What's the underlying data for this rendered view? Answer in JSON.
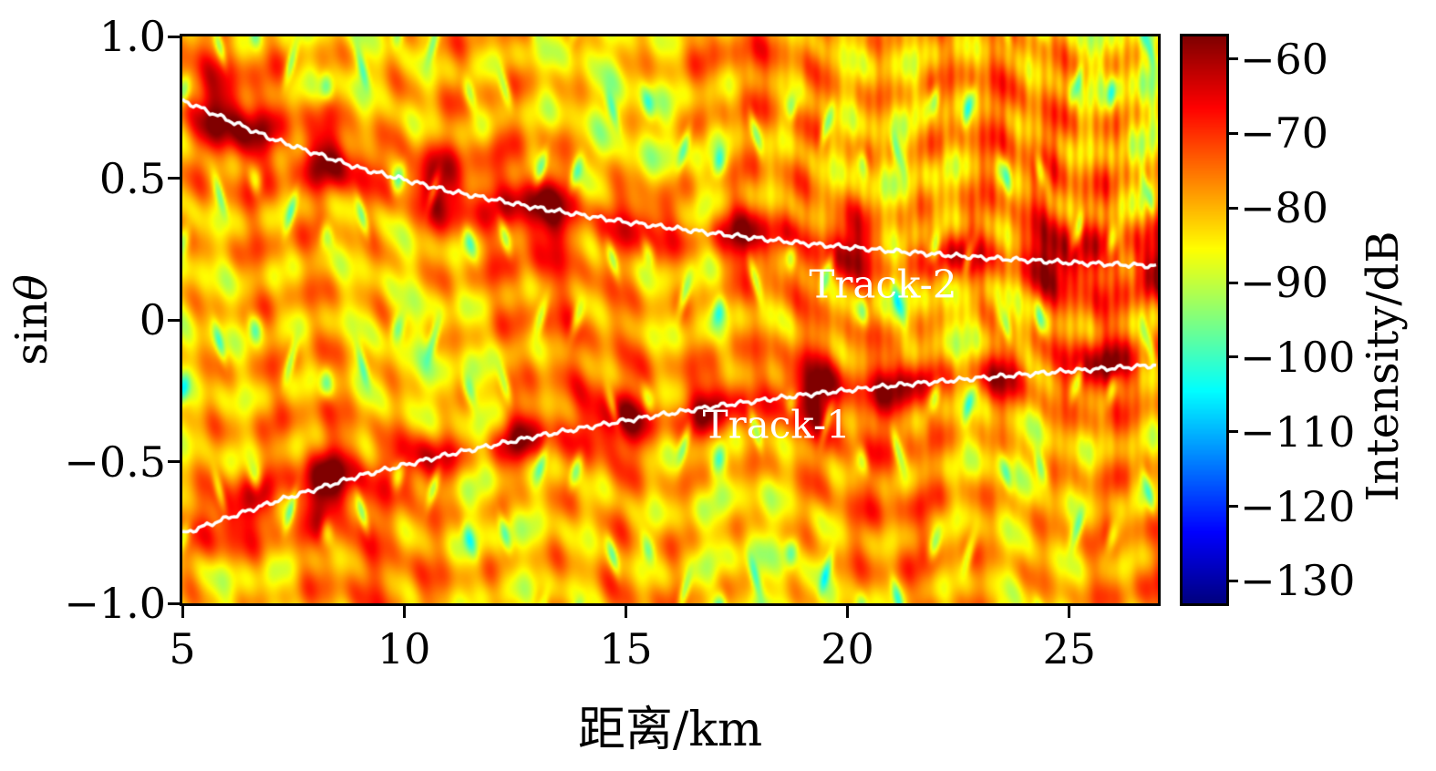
{
  "figure": {
    "background": "#ffffff"
  },
  "chart_data": {
    "type": "heatmap",
    "title": "",
    "xlabel": "距离/km",
    "ylabel_roman": "sin",
    "ylabel_symbol": "θ",
    "colorbar_label": "Intensity/dB",
    "colormap": "jet",
    "xlim": [
      5,
      27
    ],
    "ylim": [
      -1,
      1
    ],
    "colorbar_range": [
      -133,
      -57
    ],
    "x_ticks": [
      {
        "v": 5,
        "label": "5"
      },
      {
        "v": 10,
        "label": "10"
      },
      {
        "v": 15,
        "label": "15"
      },
      {
        "v": 20,
        "label": "20"
      },
      {
        "v": 25,
        "label": "25"
      }
    ],
    "y_ticks": [
      {
        "v": 1.0,
        "label": "1.0"
      },
      {
        "v": 0.5,
        "label": "0.5"
      },
      {
        "v": 0,
        "label": "0"
      },
      {
        "v": -0.5,
        "label": "−0.5"
      },
      {
        "v": -1.0,
        "label": "−1.0"
      }
    ],
    "colorbar_ticks": [
      {
        "v": -60,
        "label": "−60"
      },
      {
        "v": -70,
        "label": "−70"
      },
      {
        "v": -80,
        "label": "−80"
      },
      {
        "v": -90,
        "label": "−90"
      },
      {
        "v": -100,
        "label": "−100"
      },
      {
        "v": -110,
        "label": "−110"
      },
      {
        "v": -120,
        "label": "−120"
      },
      {
        "v": -130,
        "label": "−130"
      }
    ],
    "background_field": {
      "base_db": -80,
      "striation_db": 4.2,
      "speckle_db": 2.6,
      "dropout_db": 16,
      "ridge_gain_db": 20,
      "ridge_sigma_sin": 0.085
    },
    "tracks": [
      {
        "name": "Track-1",
        "label": "Track-1",
        "label_x_km": 18.4,
        "label_y_sin": -0.37,
        "x_km": [
          5,
          7,
          9,
          11,
          13,
          15,
          17,
          19,
          21,
          23,
          25,
          27
        ],
        "y_sin": [
          -0.755,
          -0.645,
          -0.55,
          -0.475,
          -0.41,
          -0.355,
          -0.305,
          -0.265,
          -0.232,
          -0.205,
          -0.18,
          -0.16
        ]
      },
      {
        "name": "Track-2",
        "label": "Track-2",
        "label_x_km": 20.8,
        "label_y_sin": 0.125,
        "x_km": [
          5,
          7,
          9,
          11,
          13,
          15,
          17,
          19,
          21,
          23,
          25,
          27
        ],
        "y_sin": [
          0.775,
          0.64,
          0.535,
          0.455,
          0.395,
          0.345,
          0.305,
          0.27,
          0.243,
          0.22,
          0.202,
          0.19
        ]
      }
    ]
  }
}
